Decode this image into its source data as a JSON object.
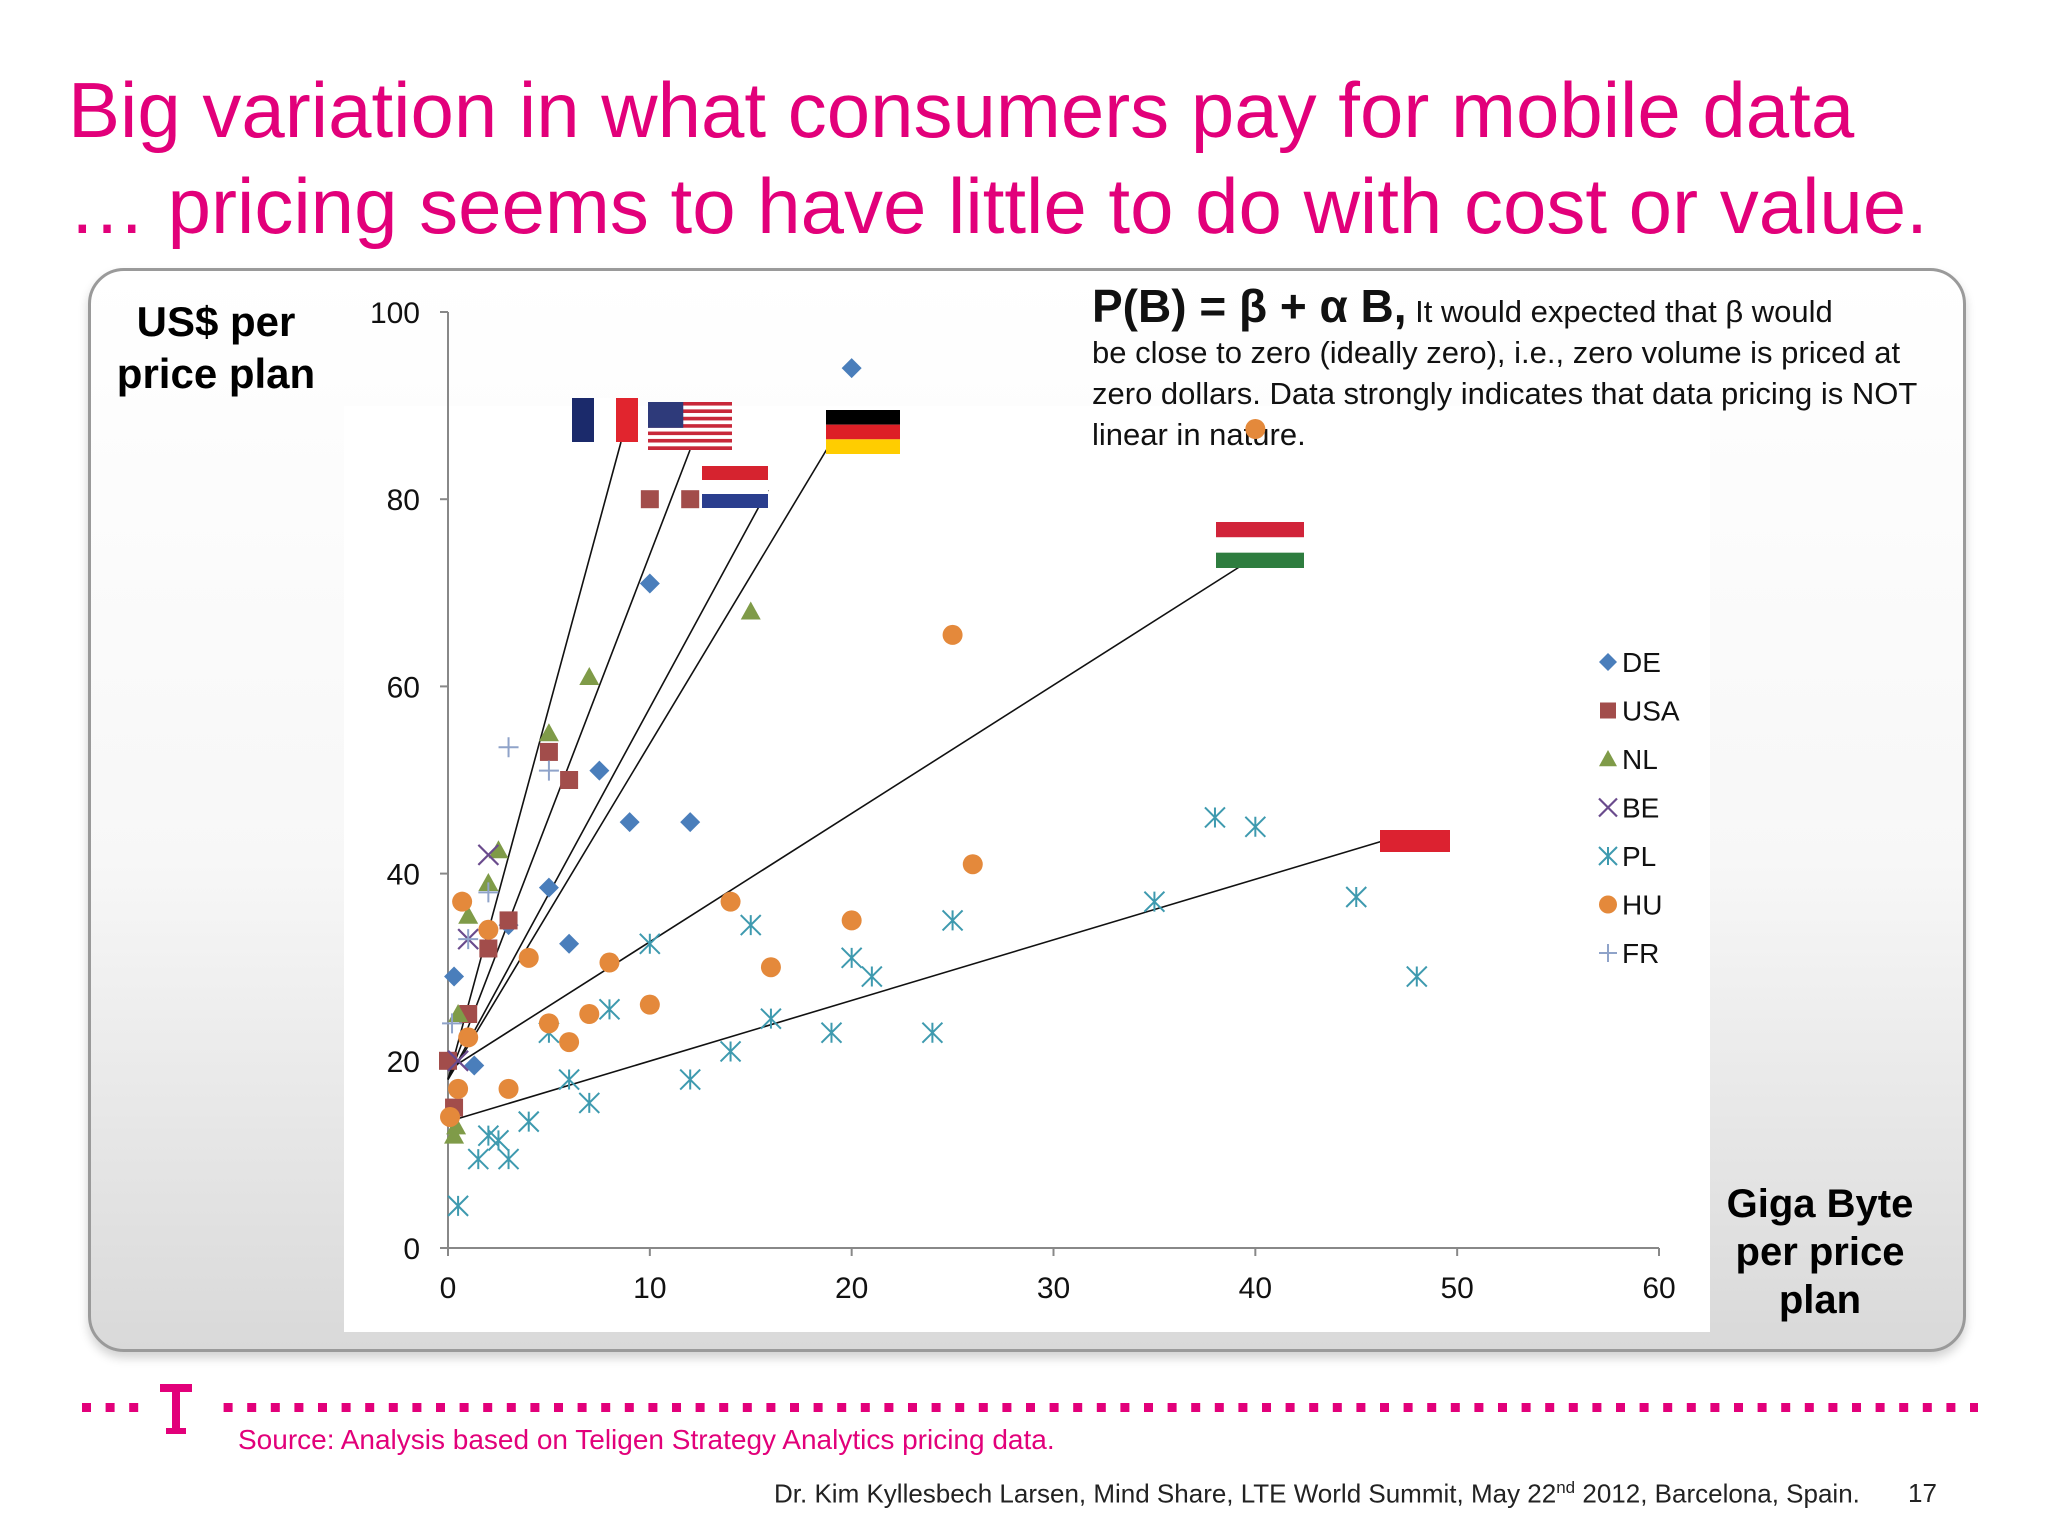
{
  "slide": {
    "title_line1": "Big variation in what consumers pay for mobile data",
    "title_line2": "… pricing seems to have little to do with cost or value.",
    "source": "Source: Analysis based on Teligen Strategy Analytics pricing data.",
    "footer": "Dr. Kim Kyllesbech Larsen, Mind Share, LTE World Summit, May 22",
    "footer_sup": "nd",
    "footer_tail": " 2012, Barcelona, Spain.",
    "page_number": "17",
    "brand_color": "#e2007a"
  },
  "annotation": {
    "formula": "P(B) = β + α B,",
    "text_first": " It would expected that β would",
    "text_rest": "be close to zero (ideally zero), i.e., zero volume is priced at zero dollars. Data strongly indicates that data pricing is NOT linear in nature."
  },
  "chart_data": {
    "type": "scatter",
    "ylabel": "US$ per price plan",
    "xlabel": "Giga Byte per price plan",
    "xlim": [
      0,
      60
    ],
    "ylim": [
      0,
      100
    ],
    "xticks": [
      "0",
      "10",
      "20",
      "30",
      "40",
      "50",
      "60"
    ],
    "yticks": [
      "0",
      "20",
      "40",
      "60",
      "80",
      "100"
    ],
    "legend_position": "right",
    "series": [
      {
        "name": "DE",
        "marker": "diamond",
        "color": "#4a7ebb",
        "points": [
          [
            0.3,
            29
          ],
          [
            1.3,
            19.5
          ],
          [
            3,
            34.5
          ],
          [
            5,
            38.5
          ],
          [
            6,
            32.5
          ],
          [
            7.5,
            51
          ],
          [
            9,
            45.5
          ],
          [
            10,
            71
          ],
          [
            12,
            45.5
          ],
          [
            20,
            94
          ]
        ]
      },
      {
        "name": "USA",
        "marker": "square",
        "color": "#a24d4b",
        "points": [
          [
            0,
            20
          ],
          [
            0.3,
            15
          ],
          [
            1,
            25
          ],
          [
            2,
            32
          ],
          [
            3,
            35
          ],
          [
            5,
            53
          ],
          [
            6,
            50
          ],
          [
            10,
            80
          ],
          [
            12,
            80
          ]
        ]
      },
      {
        "name": "NL",
        "marker": "triangle",
        "color": "#7f9b48",
        "points": [
          [
            0.3,
            12
          ],
          [
            0.4,
            13
          ],
          [
            0.5,
            25
          ],
          [
            1,
            35.5
          ],
          [
            2,
            39
          ],
          [
            2.5,
            42.5
          ],
          [
            5,
            55
          ],
          [
            7,
            61
          ],
          [
            15,
            68
          ]
        ]
      },
      {
        "name": "BE",
        "marker": "x",
        "color": "#6a4b8d",
        "points": [
          [
            0.5,
            20
          ],
          [
            1,
            33
          ],
          [
            2,
            42
          ]
        ]
      },
      {
        "name": "PL",
        "marker": "asterisk",
        "color": "#3e9aaf",
        "points": [
          [
            0.5,
            4.5
          ],
          [
            1.5,
            9.5
          ],
          [
            2,
            12
          ],
          [
            2.5,
            11.5
          ],
          [
            3,
            9.5
          ],
          [
            4,
            13.5
          ],
          [
            5,
            23
          ],
          [
            6,
            18
          ],
          [
            7,
            15.5
          ],
          [
            8,
            25.5
          ],
          [
            10,
            32.5
          ],
          [
            12,
            18
          ],
          [
            14,
            21
          ],
          [
            15,
            34.5
          ],
          [
            16,
            24.5
          ],
          [
            19,
            23
          ],
          [
            20,
            31
          ],
          [
            21,
            29
          ],
          [
            24,
            23
          ],
          [
            25,
            35
          ],
          [
            35,
            37
          ],
          [
            38,
            46
          ],
          [
            40,
            45
          ],
          [
            45,
            37.5
          ],
          [
            48,
            29
          ]
        ]
      },
      {
        "name": "HU",
        "marker": "circle",
        "color": "#e4893b",
        "points": [
          [
            0.1,
            14
          ],
          [
            0.5,
            17
          ],
          [
            0.7,
            37
          ],
          [
            1,
            22.5
          ],
          [
            2,
            34
          ],
          [
            3,
            17
          ],
          [
            4,
            31
          ],
          [
            5,
            24
          ],
          [
            6,
            22
          ],
          [
            7,
            25
          ],
          [
            8,
            30.5
          ],
          [
            10,
            26
          ],
          [
            14,
            37
          ],
          [
            16,
            30
          ],
          [
            20,
            35
          ],
          [
            25,
            65.5
          ],
          [
            26,
            41
          ],
          [
            40,
            87.5
          ]
        ]
      },
      {
        "name": "FR",
        "marker": "plus",
        "color": "#8fa3c9",
        "points": [
          [
            0.2,
            24
          ],
          [
            1,
            33
          ],
          [
            2,
            38
          ],
          [
            3,
            53.5
          ],
          [
            5,
            51
          ]
        ]
      }
    ],
    "trend_lines": [
      {
        "from": [
          0,
          18
        ],
        "to_label": "France flag"
      },
      {
        "from": [
          0,
          18
        ],
        "to_label": "USA flag"
      },
      {
        "from": [
          0,
          18
        ],
        "to_label": "Germany flag"
      },
      {
        "from": [
          0,
          18
        ],
        "to_label": "Netherlands flag"
      },
      {
        "from": [
          0,
          19
        ],
        "to_label": "Hungary flag"
      },
      {
        "from": [
          0,
          13.5
        ],
        "to_label": "Poland flag"
      }
    ],
    "flags": [
      {
        "name": "france-flag",
        "country": "FR"
      },
      {
        "name": "usa-flag",
        "country": "USA"
      },
      {
        "name": "germany-flag",
        "country": "DE"
      },
      {
        "name": "netherlands-flag",
        "country": "NL"
      },
      {
        "name": "hungary-flag",
        "country": "HU"
      },
      {
        "name": "poland-flag",
        "country": "PL"
      }
    ]
  }
}
